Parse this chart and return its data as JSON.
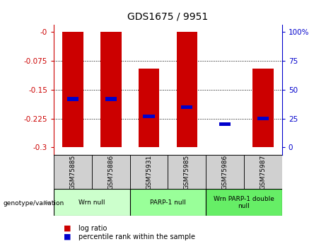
{
  "title": "GDS1675 / 9951",
  "samples": [
    "GSM75885",
    "GSM75886",
    "GSM75931",
    "GSM75985",
    "GSM75986",
    "GSM75987"
  ],
  "log_ratios_bottom": [
    -0.3,
    -0.3,
    -0.3,
    -0.3,
    -0.243,
    -0.3
  ],
  "log_ratios_top": [
    0.0,
    0.0,
    -0.095,
    0.0,
    -0.243,
    -0.095
  ],
  "percentile_ranks_pct": [
    42,
    42,
    27,
    35,
    20,
    25
  ],
  "groups": [
    {
      "label": "Wrn null",
      "start": 0,
      "end": 2,
      "color": "#ccffcc"
    },
    {
      "label": "PARP-1 null",
      "start": 2,
      "end": 4,
      "color": "#99ff99"
    },
    {
      "label": "Wrn PARP-1 double\nnull",
      "start": 4,
      "end": 6,
      "color": "#66ee66"
    }
  ],
  "ylim_left": [
    -0.32,
    0.02
  ],
  "left_ticks": [
    0.0,
    -0.075,
    -0.15,
    -0.225,
    -0.3
  ],
  "left_tick_labels": [
    "-0",
    "-0.075",
    "-0.15",
    "-0.225",
    "-0.3"
  ],
  "right_ticks": [
    0,
    25,
    50,
    75,
    100
  ],
  "right_tick_labels": [
    "0",
    "25",
    "50",
    "75",
    "100%"
  ],
  "bar_color": "#cc0000",
  "percentile_color": "#0000cc",
  "left_axis_color": "#cc0000",
  "right_axis_color": "#0000cc",
  "bar_width": 0.55
}
